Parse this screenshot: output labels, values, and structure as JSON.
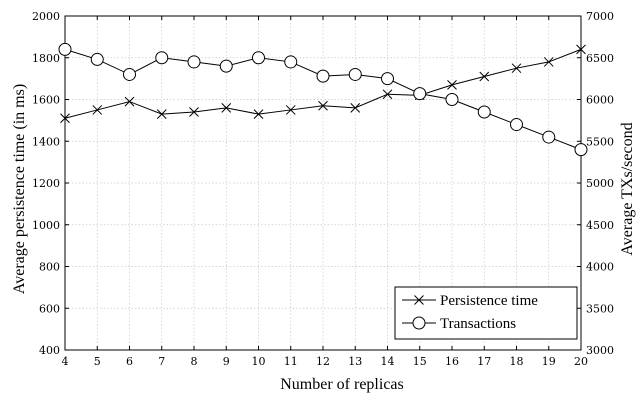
{
  "chart_data": {
    "type": "line",
    "xlabel": "Number of replicas",
    "ylabel_left": "Average persistence time (in ms)",
    "ylabel_right": "Average TXs/second",
    "x": [
      4,
      5,
      6,
      7,
      8,
      9,
      10,
      11,
      12,
      13,
      14,
      15,
      16,
      17,
      18,
      19,
      20
    ],
    "xlim": [
      4,
      20
    ],
    "ylim_left": [
      400,
      2000
    ],
    "ylim_right": [
      3000,
      7000
    ],
    "left_ticks": [
      400,
      600,
      800,
      1000,
      1200,
      1400,
      1600,
      1800,
      2000
    ],
    "right_ticks": [
      3000,
      3500,
      4000,
      4500,
      5000,
      5500,
      6000,
      6500,
      7000
    ],
    "grid": true,
    "legend_position": "bottom-right",
    "series": [
      {
        "name": "Persistence time",
        "axis": "left",
        "marker": "x",
        "values": [
          1510,
          1550,
          1590,
          1530,
          1540,
          1560,
          1530,
          1550,
          1570,
          1560,
          1625,
          1620,
          1670,
          1710,
          1750,
          1780,
          1840
        ]
      },
      {
        "name": "Transactions",
        "axis": "right",
        "marker": "circle",
        "values": [
          6600,
          6480,
          6300,
          6500,
          6450,
          6400,
          6500,
          6450,
          6280,
          6300,
          6250,
          6070,
          6000,
          5850,
          5700,
          5550,
          5400
        ]
      }
    ]
  }
}
